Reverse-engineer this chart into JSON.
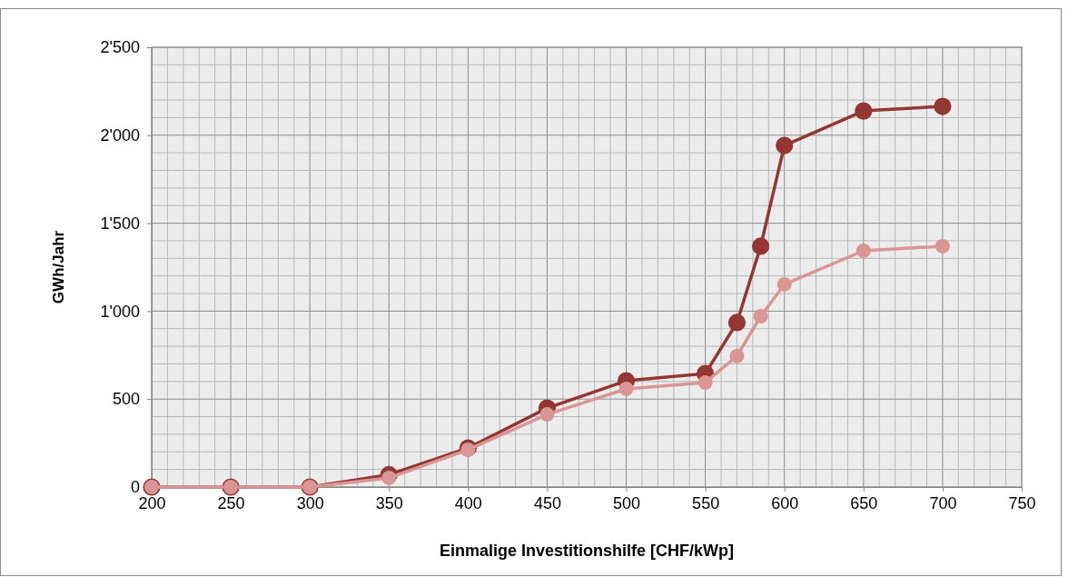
{
  "chart_data": {
    "type": "line",
    "xlabel": "Einmalige Investitionshilfe [CHF/kWp]",
    "ylabel": "GWh/Jahr",
    "x": [
      200,
      250,
      300,
      350,
      400,
      450,
      500,
      550,
      570,
      585,
      600,
      650,
      700
    ],
    "series": [
      {
        "color": "#943634",
        "values": [
          0,
          0,
          0,
          70,
          222,
          449,
          604,
          645,
          935,
          1369,
          1942,
          2138,
          2164
        ]
      },
      {
        "color": "#d99694",
        "values": [
          0,
          0,
          0,
          52,
          212,
          413,
          558,
          594,
          744,
          971,
          1152,
          1343,
          1369
        ]
      }
    ],
    "xlim": [
      200,
      750
    ],
    "ylim": [
      0,
      2500
    ],
    "xticks": [
      200,
      {
        "value": 210,
        "label": null
      },
      {
        "value": 220,
        "label": null
      },
      {
        "value": 230,
        "label": null
      },
      {
        "value": 240,
        "label": null
      },
      250,
      {
        "value": 260,
        "label": null
      },
      {
        "value": 270,
        "label": null
      },
      {
        "value": 280,
        "label": null
      },
      {
        "value": 290,
        "label": null
      },
      300,
      {
        "value": 310,
        "label": null
      },
      {
        "value": 320,
        "label": null
      },
      {
        "value": 330,
        "label": null
      },
      {
        "value": 340,
        "label": null
      },
      350,
      {
        "value": 360,
        "label": null
      },
      {
        "value": 370,
        "label": null
      },
      {
        "value": 380,
        "label": null
      },
      {
        "value": 390,
        "label": null
      },
      400,
      {
        "value": 410,
        "label": null
      },
      {
        "value": 420,
        "label": null
      },
      {
        "value": 430,
        "label": null
      },
      {
        "value": 440,
        "label": null
      },
      450,
      {
        "value": 460,
        "label": null
      },
      {
        "value": 470,
        "label": null
      },
      {
        "value": 480,
        "label": null
      },
      {
        "value": 490,
        "label": null
      },
      500,
      {
        "value": 510,
        "label": null
      },
      {
        "value": 520,
        "label": null
      },
      {
        "value": 530,
        "label": null
      },
      {
        "value": 540,
        "label": null
      },
      550,
      {
        "value": 560,
        "label": null
      },
      {
        "value": 570,
        "label": null
      },
      {
        "value": 580,
        "label": null
      },
      {
        "value": 590,
        "label": null
      },
      600,
      {
        "value": 610,
        "label": null
      },
      {
        "value": 620,
        "label": null
      },
      {
        "value": 630,
        "label": null
      },
      {
        "value": 640,
        "label": null
      },
      650,
      {
        "value": 660,
        "label": null
      },
      {
        "value": 670,
        "label": null
      },
      {
        "value": 680,
        "label": null
      },
      {
        "value": 690,
        "label": null
      },
      700,
      {
        "value": 710,
        "label": null
      },
      {
        "value": 720,
        "label": null
      },
      {
        "value": 730,
        "label": null
      },
      {
        "value": 740,
        "label": null
      },
      750
    ],
    "yticks": [
      0,
      {
        "value": 100,
        "label": null
      },
      {
        "value": 200,
        "label": null
      },
      {
        "value": 300,
        "label": null
      },
      {
        "value": 400,
        "label": null
      },
      500,
      {
        "value": 600,
        "label": null
      },
      {
        "value": 700,
        "label": null
      },
      {
        "value": 800,
        "label": null
      },
      {
        "value": 900,
        "label": null
      },
      {
        "value": 1000,
        "label": "1'000"
      },
      {
        "value": 1100,
        "label": null
      },
      {
        "value": 1200,
        "label": null
      },
      {
        "value": 1300,
        "label": null
      },
      {
        "value": 1400,
        "label": null
      },
      {
        "value": 1500,
        "label": "1'500"
      },
      {
        "value": 1600,
        "label": null
      },
      {
        "value": 1700,
        "label": null
      },
      {
        "value": 1800,
        "label": null
      },
      {
        "value": 1900,
        "label": null
      },
      {
        "value": 2000,
        "label": "2'000"
      },
      {
        "value": 2100,
        "label": null
      },
      {
        "value": 2200,
        "label": null
      },
      {
        "value": 2300,
        "label": null
      },
      {
        "value": 2400,
        "label": null
      },
      {
        "value": 2500,
        "label": "2'500"
      }
    ],
    "grid": true,
    "marker": "circle",
    "line_style": "solid"
  }
}
